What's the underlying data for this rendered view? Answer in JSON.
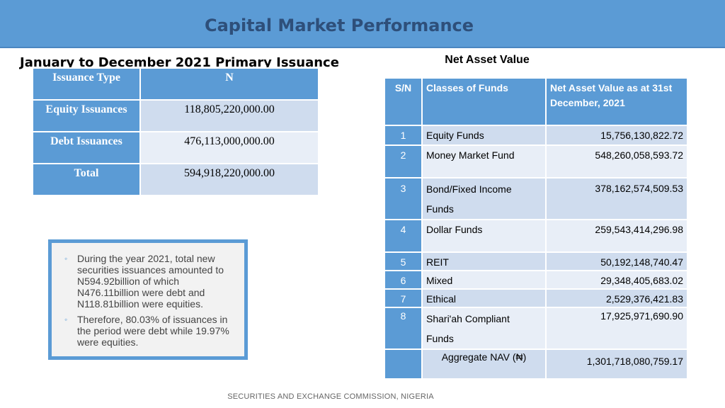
{
  "banner": {
    "title": "Capital Market Performance"
  },
  "left": {
    "heading": "January to December 2021 Primary Issuance",
    "table": {
      "headers": [
        "Issuance Type",
        "N"
      ],
      "rows": [
        {
          "type": "Equity Issuances",
          "amount": "118,805,220,000.00"
        },
        {
          "type": "Debt Issuances",
          "amount": "476,113,000,000.00"
        },
        {
          "type": "Total",
          "amount": "594,918,220,000.00"
        }
      ]
    }
  },
  "notes": [
    "During the year 2021, total new securities issuances amounted to N594.92billion of which N476.11billion were debt and N118.81billion were equities.",
    "Therefore, 80.03% of issuances in the period were debt while 19.97% were equities."
  ],
  "right": {
    "heading": "Net Asset Value",
    "table": {
      "headers": [
        "S/N",
        "Classes of Funds",
        "Net Asset Value as at 31st December, 2021"
      ],
      "rows": [
        {
          "sn": "1",
          "class": "Equity Funds",
          "value": "15,756,130,822.72"
        },
        {
          "sn": "2",
          "class": "Money Market Fund",
          "value": "548,260,058,593.72"
        },
        {
          "sn": "3",
          "class": "Bond/Fixed Income Funds",
          "value": "378,162,574,509.53"
        },
        {
          "sn": "4",
          "class": "Dollar Funds",
          "value": "259,543,414,296.98"
        },
        {
          "sn": "5",
          "class": "REIT",
          "value": "50,192,148,740.47"
        },
        {
          "sn": "6",
          "class": "Mixed",
          "value": "29,348,405,683.02"
        },
        {
          "sn": "7",
          "class": "Ethical",
          "value": "2,529,376,421.83"
        },
        {
          "sn": "8",
          "class": "Shari'ah Compliant Funds",
          "value": "17,925,971,690.90"
        }
      ],
      "aggregate": {
        "label": "Aggregate NAV (₦)",
        "value": "1,301,718,080,759.17"
      }
    }
  },
  "footer": {
    "text": "SECURITIES AND EXCHANGE COMMISSION, NIGERIA"
  }
}
